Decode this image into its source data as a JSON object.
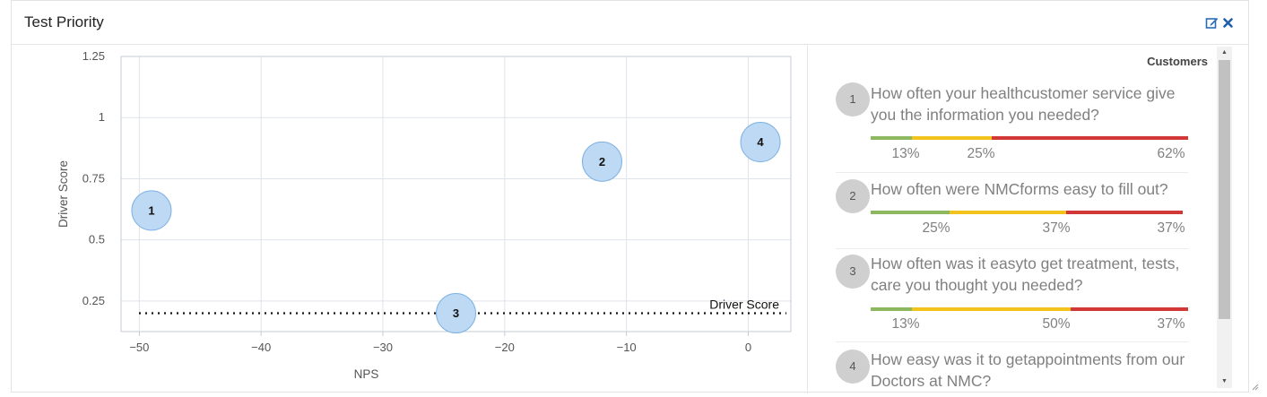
{
  "panel": {
    "title": "Test Priority",
    "edit_icon": "edit-icon",
    "close_icon": "close-icon"
  },
  "colors": {
    "green": "#8cb860",
    "yellow": "#f2c31c",
    "red": "#d33838",
    "bubble_fill": "#bdd9f3",
    "bubble_stroke": "#7fb2e3"
  },
  "chart_data": {
    "type": "scatter",
    "xlabel": "NPS",
    "ylabel": "Driver Score",
    "xlim": [
      -51.5,
      3.5
    ],
    "ylim": [
      0.125,
      1.25
    ],
    "x_ticks": [
      -50,
      -40,
      -30,
      -20,
      -10,
      0
    ],
    "x_tick_labels": [
      "−50",
      "−40",
      "−30",
      "−20",
      "−10",
      "0"
    ],
    "y_ticks": [
      0.25,
      0.5,
      0.75,
      1,
      1.25
    ],
    "y_tick_labels": [
      "0.25",
      "0.5",
      "0.75",
      "1",
      "1.25"
    ],
    "grid": true,
    "points": [
      {
        "label": "1",
        "x": -49,
        "y": 0.62
      },
      {
        "label": "2",
        "x": -12,
        "y": 0.82
      },
      {
        "label": "3",
        "x": -24,
        "y": 0.2
      },
      {
        "label": "4",
        "x": 1,
        "y": 0.9
      }
    ],
    "reference_line": {
      "y": 0.2,
      "label": "Driver Score",
      "style": "dotted"
    }
  },
  "list": {
    "heading": "Customers",
    "items": [
      {
        "num": "1",
        "text": "How often your healthcustomer service give you the information you needed?",
        "green": 13,
        "yellow": 25,
        "red": 62,
        "green_label": "13%",
        "yellow_label": "25%",
        "red_label": "62%"
      },
      {
        "num": "2",
        "text": "How often were NMCforms easy to fill out?",
        "green": 25,
        "yellow": 37,
        "red": 37,
        "green_label": "25%",
        "yellow_label": "37%",
        "red_label": "37%"
      },
      {
        "num": "3",
        "text": "How often was it easyto get treatment, tests, care you thought you needed?",
        "green": 13,
        "yellow": 50,
        "red": 37,
        "green_label": "13%",
        "yellow_label": "50%",
        "red_label": "37%"
      },
      {
        "num": "4",
        "text": "How easy was it to getappointments from our Doctors at NMC?"
      }
    ]
  },
  "scrollbar": {
    "up_icon": "scroll-up-icon",
    "down_icon": "scroll-down-icon"
  }
}
